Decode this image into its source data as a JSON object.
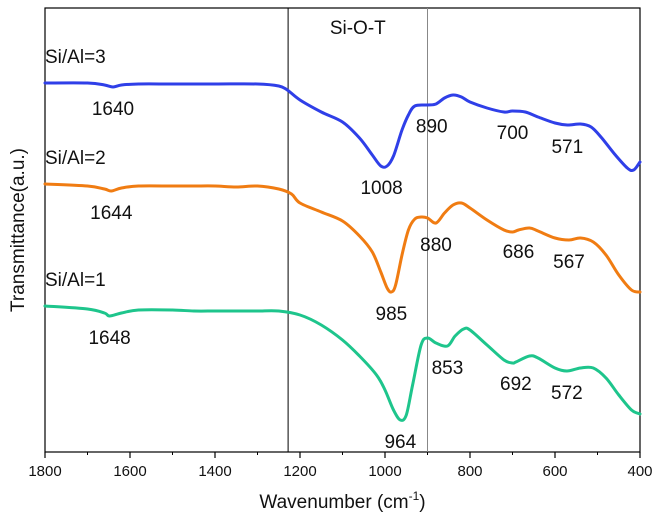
{
  "chart_data": {
    "type": "line",
    "xlabel": "Wavenumber (cm",
    "xlabel_sup": "-1",
    "xlabel_end": ")",
    "ylabel": "Transmittance(a.u.)",
    "xlim": [
      1800,
      400
    ],
    "x_reversed": true,
    "y_ticks_shown": false,
    "xticks": [
      1800,
      1600,
      1400,
      1200,
      1000,
      800,
      600,
      400
    ],
    "xtick_labels": [
      "1800",
      "1600",
      "1400",
      "1200",
      "1000",
      "800",
      "600",
      "400"
    ],
    "region": {
      "label": "Si-O-T",
      "x_from": 1228,
      "x_to": 900
    },
    "series": [
      {
        "name": "Si/Al=3",
        "color": "#2f3fe8",
        "points": [
          [
            1800,
            83
          ],
          [
            1700,
            83
          ],
          [
            1660,
            85
          ],
          [
            1640,
            87
          ],
          [
            1620,
            85
          ],
          [
            1580,
            84
          ],
          [
            1500,
            84
          ],
          [
            1400,
            84
          ],
          [
            1300,
            84
          ],
          [
            1250,
            86
          ],
          [
            1230,
            90
          ],
          [
            1200,
            100
          ],
          [
            1150,
            112
          ],
          [
            1100,
            122
          ],
          [
            1060,
            138
          ],
          [
            1030,
            155
          ],
          [
            1010,
            166
          ],
          [
            995,
            166
          ],
          [
            980,
            156
          ],
          [
            960,
            130
          ],
          [
            945,
            115
          ],
          [
            930,
            106
          ],
          [
            900,
            105
          ],
          [
            880,
            104
          ],
          [
            860,
            98
          ],
          [
            840,
            95
          ],
          [
            820,
            97
          ],
          [
            800,
            102
          ],
          [
            760,
            108
          ],
          [
            720,
            112
          ],
          [
            700,
            111
          ],
          [
            670,
            112
          ],
          [
            640,
            117
          ],
          [
            600,
            123
          ],
          [
            571,
            125
          ],
          [
            540,
            124
          ],
          [
            515,
            127
          ],
          [
            490,
            138
          ],
          [
            460,
            154
          ],
          [
            430,
            168
          ],
          [
            415,
            170
          ],
          [
            400,
            162
          ]
        ]
      },
      {
        "name": "Si/Al=2",
        "color": "#f07c12",
        "points": [
          [
            1800,
            184
          ],
          [
            1700,
            186
          ],
          [
            1660,
            189
          ],
          [
            1644,
            191
          ],
          [
            1620,
            188
          ],
          [
            1580,
            186
          ],
          [
            1500,
            186
          ],
          [
            1450,
            186
          ],
          [
            1400,
            186
          ],
          [
            1350,
            187
          ],
          [
            1300,
            186
          ],
          [
            1250,
            189
          ],
          [
            1220,
            194
          ],
          [
            1200,
            203
          ],
          [
            1150,
            212
          ],
          [
            1100,
            221
          ],
          [
            1060,
            236
          ],
          [
            1030,
            252
          ],
          [
            1010,
            272
          ],
          [
            995,
            288
          ],
          [
            985,
            292
          ],
          [
            975,
            285
          ],
          [
            960,
            255
          ],
          [
            945,
            230
          ],
          [
            930,
            219
          ],
          [
            915,
            217
          ],
          [
            900,
            218
          ],
          [
            880,
            223
          ],
          [
            860,
            213
          ],
          [
            840,
            205
          ],
          [
            820,
            203
          ],
          [
            800,
            208
          ],
          [
            760,
            220
          ],
          [
            720,
            230
          ],
          [
            700,
            232
          ],
          [
            686,
            230
          ],
          [
            660,
            228
          ],
          [
            640,
            231
          ],
          [
            600,
            238
          ],
          [
            567,
            240
          ],
          [
            540,
            238
          ],
          [
            510,
            242
          ],
          [
            480,
            255
          ],
          [
            450,
            275
          ],
          [
            420,
            290
          ],
          [
            400,
            292
          ]
        ]
      },
      {
        "name": "Si/Al=1",
        "color": "#1ec58c",
        "points": [
          [
            1800,
            306
          ],
          [
            1700,
            309
          ],
          [
            1660,
            313
          ],
          [
            1648,
            316
          ],
          [
            1620,
            313
          ],
          [
            1580,
            310
          ],
          [
            1500,
            310
          ],
          [
            1450,
            311
          ],
          [
            1400,
            311
          ],
          [
            1350,
            311
          ],
          [
            1300,
            311
          ],
          [
            1250,
            311
          ],
          [
            1200,
            315
          ],
          [
            1150,
            325
          ],
          [
            1100,
            340
          ],
          [
            1060,
            356
          ],
          [
            1020,
            375
          ],
          [
            1000,
            390
          ],
          [
            980,
            410
          ],
          [
            964,
            420
          ],
          [
            950,
            415
          ],
          [
            935,
            385
          ],
          [
            915,
            345
          ],
          [
            900,
            338
          ],
          [
            880,
            343
          ],
          [
            853,
            346
          ],
          [
            835,
            336
          ],
          [
            815,
            329
          ],
          [
            800,
            330
          ],
          [
            760,
            345
          ],
          [
            720,
            360
          ],
          [
            700,
            363
          ],
          [
            692,
            362
          ],
          [
            660,
            356
          ],
          [
            640,
            358
          ],
          [
            600,
            368
          ],
          [
            572,
            371
          ],
          [
            540,
            368
          ],
          [
            510,
            368
          ],
          [
            480,
            378
          ],
          [
            450,
            395
          ],
          [
            420,
            410
          ],
          [
            400,
            414
          ]
        ]
      }
    ],
    "series_labels": [
      {
        "text": "Si/Al=3",
        "series": 0
      },
      {
        "text": "Si/Al=2",
        "series": 1
      },
      {
        "text": "Si/Al=1",
        "series": 2
      }
    ],
    "annotations": [
      {
        "text": "1640",
        "series": 0,
        "x": 1640
      },
      {
        "text": "1008",
        "series": 0,
        "x": 1008
      },
      {
        "text": "890",
        "series": 0,
        "x": 890
      },
      {
        "text": "700",
        "series": 0,
        "x": 700
      },
      {
        "text": "571",
        "series": 0,
        "x": 571
      },
      {
        "text": "1644",
        "series": 1,
        "x": 1644
      },
      {
        "text": "985",
        "series": 1,
        "x": 985
      },
      {
        "text": "880",
        "series": 1,
        "x": 880
      },
      {
        "text": "686",
        "series": 1,
        "x": 686
      },
      {
        "text": "567",
        "series": 1,
        "x": 567
      },
      {
        "text": "1648",
        "series": 2,
        "x": 1648
      },
      {
        "text": "964",
        "series": 2,
        "x": 964
      },
      {
        "text": "853",
        "series": 2,
        "x": 853
      },
      {
        "text": "692",
        "series": 2,
        "x": 692
      },
      {
        "text": "572",
        "series": 2,
        "x": 572
      }
    ]
  }
}
